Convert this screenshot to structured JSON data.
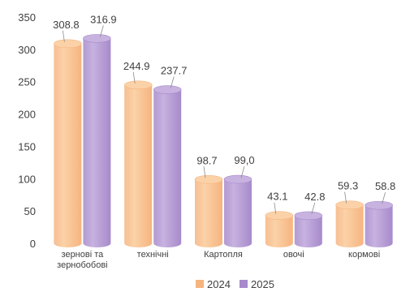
{
  "chart_data": {
    "type": "bar",
    "categories": [
      [
        "зернові та",
        "зернобобові"
      ],
      [
        "технічні"
      ],
      [
        "Картопля"
      ],
      [
        "овочі"
      ],
      [
        "кормові"
      ]
    ],
    "series": [
      {
        "name": "2024",
        "values": [
          308.8,
          244.9,
          98.7,
          43.1,
          59.3
        ],
        "labels": [
          "308.8",
          "244.9",
          "98.7",
          "43.1",
          "59.3"
        ],
        "color": "#F6B47F",
        "top_color": "#FBD2A8"
      },
      {
        "name": "2025",
        "values": [
          316.9,
          237.7,
          99.0,
          42.8,
          58.8
        ],
        "labels": [
          "316.9",
          "237.7",
          "99,0",
          "42.8",
          "58.8"
        ],
        "color": "#A78ACB",
        "top_color": "#C7B2E0"
      }
    ],
    "ylim": [
      0,
      350
    ],
    "yticks": [
      0,
      50,
      100,
      150,
      200,
      250,
      300,
      350
    ],
    "grid": false,
    "legend": "bottom-center",
    "bar_style": "cylinder-3d"
  }
}
